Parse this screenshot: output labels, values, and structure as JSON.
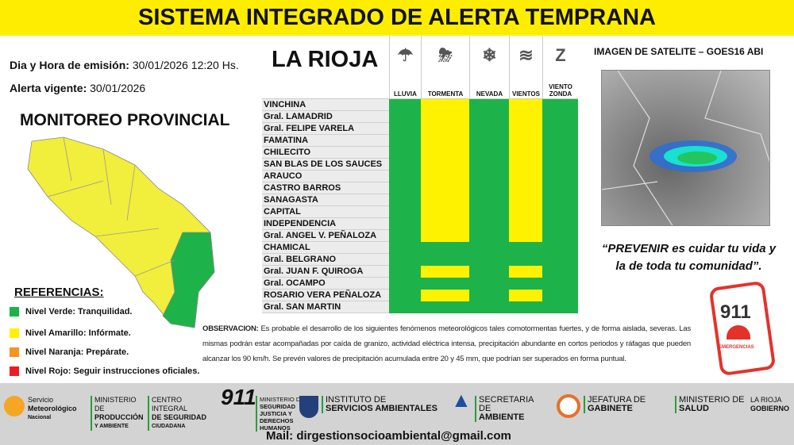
{
  "header": {
    "title": "SISTEMA INTEGRADO DE ALERTA TEMPRANA"
  },
  "info": {
    "emission_label": "Dia y Hora de emisión:",
    "emission_value": "30/01/2026  12:20 Hs.",
    "valid_label": "Alerta vigente:",
    "valid_value": "30/01/2026"
  },
  "monitoring_title": "MONITOREO PROVINCIAL",
  "references": {
    "title": "REFERENCIAS:",
    "items": [
      {
        "label": "Nivel Verde: Tranquilidad.",
        "color": "#1db34a"
      },
      {
        "label": "Nivel Amarillo:  Infórmate.",
        "color": "#fff200"
      },
      {
        "label": "Nivel Naranja:  Prepárate.",
        "color": "#f7931e"
      },
      {
        "label": "Nivel Rojo: Seguir instrucciones oficiales.",
        "color": "#ed1c24"
      }
    ]
  },
  "colors": {
    "green": "#1db34a",
    "yellow": "#fff200",
    "topbar": "#ffed00"
  },
  "table": {
    "title": "LA RIOJA",
    "columns": [
      {
        "label": "LLUVIA",
        "icon": "rain-cloud-icon",
        "glyph": "☂"
      },
      {
        "label": "TORMENTA",
        "icon": "storm-cloud-icon",
        "glyph": "⛈"
      },
      {
        "label": "NEVADA",
        "icon": "snowflake-icon",
        "glyph": "❄"
      },
      {
        "label": "VIENTOS",
        "icon": "wind-icon",
        "glyph": "≋"
      },
      {
        "label": "VIENTO ZONDA",
        "icon": "zonda-icon",
        "glyph": "Z"
      }
    ],
    "rows": [
      {
        "name": "VINCHINA",
        "levels": [
          "g",
          "y",
          "g",
          "y",
          "g"
        ]
      },
      {
        "name": "Gral. LAMADRID",
        "levels": [
          "g",
          "y",
          "g",
          "y",
          "g"
        ]
      },
      {
        "name": "Gral. FELIPE VARELA",
        "levels": [
          "g",
          "y",
          "g",
          "y",
          "g"
        ]
      },
      {
        "name": "FAMATINA",
        "levels": [
          "g",
          "y",
          "g",
          "y",
          "g"
        ]
      },
      {
        "name": "CHILECITO",
        "levels": [
          "g",
          "y",
          "g",
          "y",
          "g"
        ]
      },
      {
        "name": "SAN BLAS DE LOS SAUCES",
        "levels": [
          "g",
          "y",
          "g",
          "y",
          "g"
        ]
      },
      {
        "name": "ARAUCO",
        "levels": [
          "g",
          "y",
          "g",
          "y",
          "g"
        ]
      },
      {
        "name": "CASTRO BARROS",
        "levels": [
          "g",
          "y",
          "g",
          "y",
          "g"
        ]
      },
      {
        "name": "SANAGASTA",
        "levels": [
          "g",
          "y",
          "g",
          "y",
          "g"
        ]
      },
      {
        "name": "CAPITAL",
        "levels": [
          "g",
          "y",
          "g",
          "y",
          "g"
        ]
      },
      {
        "name": "INDEPENDENCIA",
        "levels": [
          "g",
          "y",
          "g",
          "y",
          "g"
        ]
      },
      {
        "name": "Gral. ANGEL V. PEÑALOZA",
        "levels": [
          "g",
          "y",
          "g",
          "y",
          "g"
        ]
      },
      {
        "name": "CHAMICAL",
        "levels": [
          "g",
          "g",
          "g",
          "g",
          "g"
        ]
      },
      {
        "name": "Gral. BELGRANO",
        "levels": [
          "g",
          "g",
          "g",
          "g",
          "g"
        ]
      },
      {
        "name": "Gral. JUAN F. QUIROGA",
        "levels": [
          "g",
          "y",
          "g",
          "y",
          "g"
        ]
      },
      {
        "name": "Gral. OCAMPO",
        "levels": [
          "g",
          "g",
          "g",
          "g",
          "g"
        ]
      },
      {
        "name": "ROSARIO VERA PEÑALOZA",
        "levels": [
          "g",
          "y",
          "g",
          "y",
          "g"
        ]
      },
      {
        "name": "Gral. SAN MARTIN",
        "levels": [
          "g",
          "g",
          "g",
          "g",
          "g"
        ]
      }
    ]
  },
  "satellite": {
    "title": "IMAGEN DE SATELITE – GOES16 ABI"
  },
  "quote": {
    "line1": "“PREVENIR es cuidar tu vida y",
    "line2": "la de toda tu comunidad”."
  },
  "emergency": {
    "number": "911",
    "label": "EMERGENCIAS"
  },
  "observation": {
    "label": "OBSERVACION:",
    "text": " Es probable el desarrollo de los siguientes fenómenos meteorológicos tales comotormentas fuertes, y de forma aislada, severas. Las mismas podrán estar acompañadas por caída de granizo, actividad eléctrica intensa, precipitación abundante en cortos periodos y ráfagas que pueden alcanzar los 90 km/h. Se prevén valores de precipitación acumulada entre 20 y 45 mm, que podrían ser superados en forma puntual."
  },
  "footer": {
    "logos": [
      {
        "l1": "Servicio",
        "l2": "Meteorológico",
        "l3": "Nacional"
      },
      {
        "l1": "MINISTERIO DE",
        "l2": "PRODUCCIÓN",
        "l3": "Y AMBIENTE"
      },
      {
        "l1": "CENTRO INTEGRAL",
        "l2": "DE SEGURIDAD",
        "l3": "CIUDADANA",
        "big": "911"
      },
      {
        "l1": "MINISTERIO DE",
        "l2": "SEGURIDAD",
        "l3": "JUSTICIA Y DERECHOS HUMANOS"
      },
      {
        "l1": "INSTITUTO DE",
        "l2": "SERVICIOS AMBIENTALES"
      },
      {
        "l1": "SECRETARIA DE",
        "l2": "AMBIENTE"
      },
      {
        "l1": "JEFATURA DE",
        "l2": "GABINETE"
      },
      {
        "l1": "MINISTERIO DE",
        "l2": "SALUD"
      },
      {
        "l1": "LA RIOJA",
        "l2": "GOBIERNO"
      }
    ],
    "mail": "Mail: dirgestionsocioambiental@gmail.com"
  }
}
